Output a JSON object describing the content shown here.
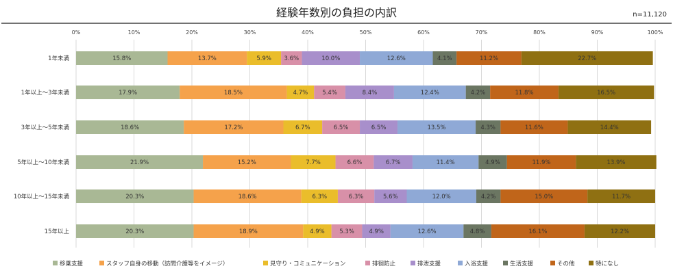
{
  "chart_data": {
    "type": "bar",
    "orientation": "horizontal",
    "stacked": true,
    "title": "経験年数別の負担の内訳",
    "note": "n=11,120",
    "xlim": [
      0,
      100
    ],
    "xticks": [
      "0%",
      "10%",
      "20%",
      "30%",
      "40%",
      "50%",
      "60%",
      "70%",
      "80%",
      "90%",
      "100%"
    ],
    "grid": true,
    "legend_position": "bottom",
    "categories": [
      "1年未満",
      "1年以上～3年未満",
      "3年以上～5年未満",
      "5年以上～10年未満",
      "10年以上～15年未満",
      "15年以上"
    ],
    "series": [
      {
        "name": "移乗支援",
        "color": "#a9b895",
        "values": [
          15.8,
          17.9,
          18.6,
          21.9,
          20.3,
          20.3
        ],
        "labels": [
          "15.8%",
          "17.9%",
          "18.6%",
          "21.9%",
          "20.3%",
          "20.3%"
        ]
      },
      {
        "name": "スタッフ自身の移動（訪問介護等をイメージ）",
        "color": "#f5a24b",
        "values": [
          13.7,
          18.5,
          17.2,
          15.2,
          18.6,
          18.9
        ],
        "labels": [
          "13.7%",
          "18.5%",
          "17.2%",
          "15.2%",
          "18.6%",
          "18.9%"
        ]
      },
      {
        "name": "見守り・コミュニケーション",
        "color": "#eabd2b",
        "values": [
          5.9,
          4.7,
          6.7,
          7.7,
          6.3,
          4.9
        ],
        "labels": [
          "5.9%",
          "4.7%",
          "6.7%",
          "7.7%",
          "6.3%",
          "4.9%"
        ]
      },
      {
        "name": "排徊防止",
        "color": "#d890a8",
        "values": [
          3.6,
          5.4,
          6.5,
          6.6,
          6.3,
          5.3
        ],
        "labels": [
          "3.6%",
          "5.4%",
          "6.5%",
          "6.6%",
          "6.3%",
          "5.3%"
        ]
      },
      {
        "name": "排泄支援",
        "color": "#a88fcb",
        "values": [
          10.0,
          8.4,
          6.5,
          6.7,
          5.6,
          4.9
        ],
        "labels": [
          "10.0%",
          "8.4%",
          "6.5%",
          "6.7%",
          "5.6%",
          "4.9%"
        ]
      },
      {
        "name": "入浴支援",
        "color": "#8fa9d6",
        "values": [
          12.6,
          12.4,
          13.5,
          11.4,
          12.0,
          12.6
        ],
        "labels": [
          "12.6%",
          "12.4%",
          "13.5%",
          "11.4%",
          "12.0%",
          "12.6%"
        ]
      },
      {
        "name": "生活支援",
        "color": "#6b7662",
        "values": [
          4.1,
          4.2,
          4.3,
          4.9,
          4.2,
          4.8
        ],
        "labels": [
          "4.1%",
          "4.2%",
          "4.3%",
          "4.9%",
          "4.2%",
          "4.8%"
        ]
      },
      {
        "name": "その他",
        "color": "#c0651a",
        "values": [
          11.2,
          11.8,
          11.6,
          11.9,
          15.0,
          16.1
        ],
        "labels": [
          "11.2%",
          "11.8%",
          "11.6%",
          "11.9%",
          "15.0%",
          "16.1%"
        ]
      },
      {
        "name": "特になし",
        "color": "#8f7012",
        "values": [
          22.7,
          16.5,
          14.4,
          13.9,
          11.7,
          12.2
        ],
        "labels": [
          "22.7%",
          "16.5%",
          "14.4%",
          "13.9%",
          "11.7%",
          "12.2%"
        ]
      }
    ]
  }
}
